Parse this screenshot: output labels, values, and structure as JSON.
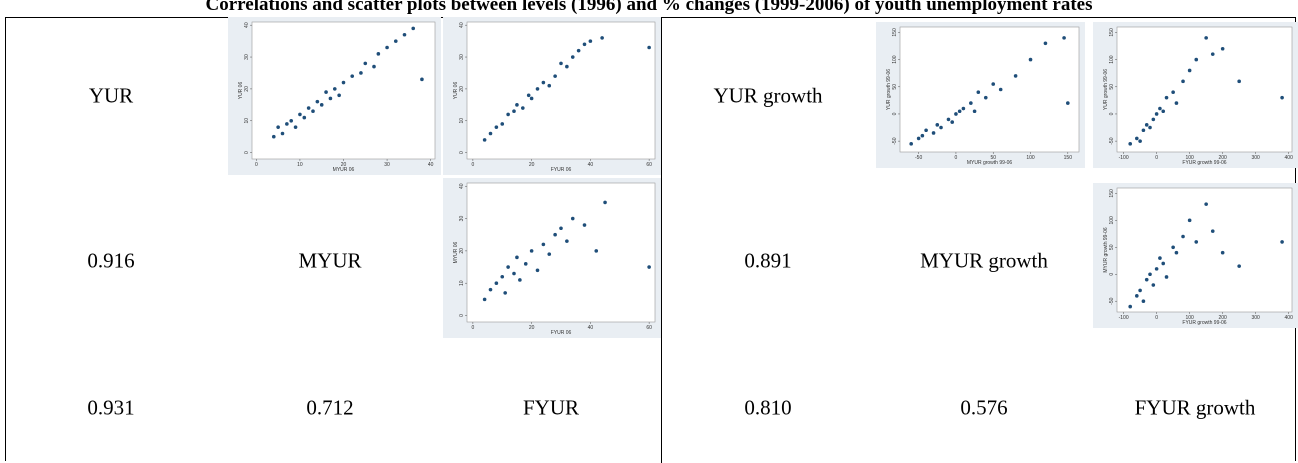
{
  "title": "Correlations and scatter plots between levels (1996) and % changes (1999-2006) of youth unemployment rates",
  "panels": [
    {
      "cells": [
        [
          "YUR"
        ],
        [
          "0.916",
          "MYUR"
        ],
        [
          "0.931",
          "0.712",
          "FYUR"
        ]
      ],
      "plots": [
        {
          "x_label": "MYUR 06",
          "y_label": "YUR 06",
          "xlim": [
            -1,
            41
          ],
          "ylim": [
            -2,
            41
          ],
          "xticks": [
            0,
            10,
            20,
            30,
            40
          ],
          "yticks": [
            0,
            10,
            20,
            30,
            40
          ],
          "x": [
            4,
            5,
            6,
            7,
            8,
            9,
            10,
            11,
            12,
            13,
            14,
            15,
            16,
            17,
            18,
            19,
            20,
            22,
            24,
            25,
            27,
            28,
            30,
            32,
            34,
            36,
            38
          ],
          "y": [
            5,
            8,
            6,
            9,
            10,
            8,
            12,
            11,
            14,
            13,
            16,
            15,
            19,
            17,
            20,
            18,
            22,
            24,
            25,
            28,
            27,
            31,
            33,
            35,
            37,
            39,
            23
          ]
        },
        {
          "x_label": "FYUR 06",
          "y_label": "YUR 06",
          "xlim": [
            -2,
            62
          ],
          "ylim": [
            -2,
            41
          ],
          "xticks": [
            0,
            20,
            40,
            60
          ],
          "yticks": [
            0,
            10,
            20,
            30,
            40
          ],
          "x": [
            4,
            6,
            8,
            10,
            12,
            14,
            15,
            17,
            19,
            20,
            22,
            24,
            26,
            28,
            30,
            32,
            34,
            36,
            38,
            40,
            44,
            60
          ],
          "y": [
            4,
            6,
            8,
            9,
            12,
            13,
            15,
            14,
            18,
            17,
            20,
            22,
            21,
            24,
            28,
            27,
            30,
            32,
            34,
            35,
            36,
            33
          ]
        },
        {
          "x_label": "FYUR 06",
          "y_label": "MYUR 06",
          "xlim": [
            -2,
            62
          ],
          "ylim": [
            -2,
            41
          ],
          "xticks": [
            0,
            20,
            40,
            60
          ],
          "yticks": [
            0,
            10,
            20,
            30,
            40
          ],
          "x": [
            4,
            6,
            8,
            10,
            11,
            12,
            14,
            15,
            16,
            18,
            20,
            22,
            24,
            26,
            28,
            30,
            32,
            34,
            38,
            42,
            45,
            60
          ],
          "y": [
            5,
            8,
            10,
            12,
            7,
            15,
            13,
            18,
            11,
            16,
            20,
            14,
            22,
            19,
            25,
            27,
            23,
            30,
            28,
            20,
            35,
            15
          ]
        }
      ]
    },
    {
      "cells": [
        [
          "YUR growth"
        ],
        [
          "0.891",
          "MYUR growth"
        ],
        [
          "0.810",
          "0.576",
          "FYUR growth"
        ]
      ],
      "plots": [
        {
          "x_label": "MYUR growth 99-06",
          "y_label": "YUR growth 99-06",
          "xlim": [
            -75,
            165
          ],
          "ylim": [
            -70,
            160
          ],
          "xticks": [
            -50,
            0,
            50,
            100,
            150
          ],
          "yticks": [
            -50,
            0,
            50,
            100,
            150
          ],
          "x": [
            -60,
            -50,
            -45,
            -40,
            -30,
            -25,
            -20,
            -10,
            -5,
            0,
            5,
            10,
            20,
            25,
            30,
            40,
            50,
            60,
            80,
            100,
            120,
            145,
            150
          ],
          "y": [
            -55,
            -45,
            -40,
            -30,
            -35,
            -20,
            -25,
            -10,
            -15,
            0,
            5,
            10,
            20,
            5,
            40,
            30,
            55,
            45,
            70,
            100,
            130,
            140,
            20
          ]
        },
        {
          "x_label": "FYUR growth 99-06",
          "y_label": "YUR growth 99-06",
          "xlim": [
            -120,
            410
          ],
          "ylim": [
            -70,
            160
          ],
          "xticks": [
            -100,
            0,
            100,
            200,
            300,
            400
          ],
          "yticks": [
            -50,
            0,
            50,
            100,
            150
          ],
          "x": [
            -80,
            -60,
            -50,
            -40,
            -30,
            -20,
            -10,
            0,
            10,
            20,
            30,
            50,
            60,
            80,
            100,
            120,
            150,
            170,
            200,
            250,
            380
          ],
          "y": [
            -55,
            -45,
            -50,
            -30,
            -20,
            -25,
            -10,
            0,
            10,
            5,
            30,
            40,
            20,
            60,
            80,
            100,
            140,
            110,
            120,
            60,
            30
          ]
        },
        {
          "x_label": "FYUR growth 99-06",
          "y_label": "MYUR growth 99-06",
          "xlim": [
            -120,
            410
          ],
          "ylim": [
            -70,
            160
          ],
          "xticks": [
            -100,
            0,
            100,
            200,
            300,
            400
          ],
          "yticks": [
            -50,
            0,
            50,
            100,
            150
          ],
          "x": [
            -80,
            -60,
            -50,
            -40,
            -30,
            -20,
            -10,
            0,
            10,
            20,
            30,
            50,
            60,
            80,
            100,
            120,
            150,
            170,
            200,
            250,
            380
          ],
          "y": [
            -60,
            -40,
            -30,
            -50,
            -10,
            0,
            -20,
            10,
            30,
            20,
            -5,
            50,
            40,
            70,
            100,
            60,
            130,
            80,
            40,
            15,
            60
          ]
        }
      ]
    }
  ]
}
